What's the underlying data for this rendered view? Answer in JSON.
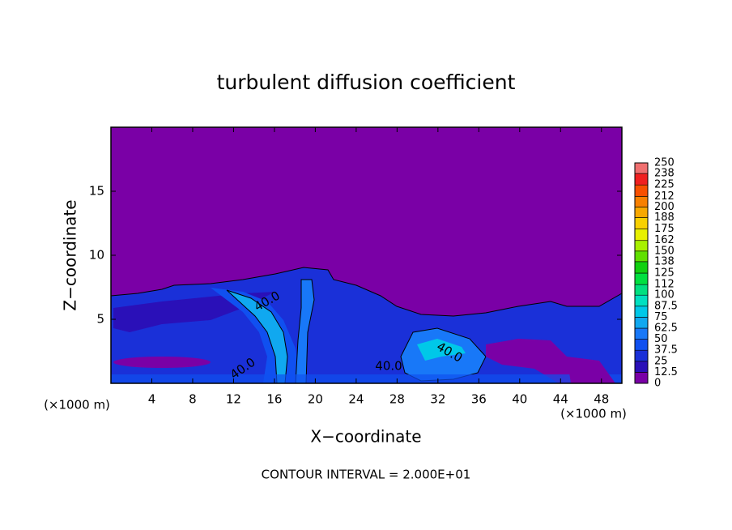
{
  "chart_data": {
    "type": "contour",
    "title": "turbulent diffusion coefficient",
    "xlabel": "X−coordinate",
    "ylabel": "Z−coordinate",
    "x_unit_left": "(×1000 m)",
    "x_unit_right": "(×1000 m)",
    "xlim": [
      0,
      50
    ],
    "xticks": [
      4,
      8,
      12,
      16,
      20,
      24,
      28,
      32,
      36,
      40,
      44,
      48
    ],
    "ylim": [
      0,
      20
    ],
    "yticks": [
      5,
      10,
      15
    ],
    "annotation": "CONTOUR INTERVAL = 2.000E+01",
    "contour_labels": [
      "40.0",
      "40.0",
      "40.0",
      "40.0"
    ],
    "colorbar": {
      "levels": [
        0,
        12.5,
        25,
        37.5,
        50,
        62.5,
        75,
        87.5,
        100,
        112,
        125,
        138,
        150,
        162,
        175,
        188,
        200,
        212,
        225,
        238,
        250
      ],
      "colors": [
        "#7a00a6",
        "#2a10b8",
        "#1a30d8",
        "#1050f0",
        "#1878f8",
        "#10a8f0",
        "#00c8e8",
        "#00e0c0",
        "#00e080",
        "#00e040",
        "#10d010",
        "#60e000",
        "#a8f000",
        "#e8f000",
        "#f8d000",
        "#f8a800",
        "#f88000",
        "#f85000",
        "#f02020",
        "#f07070"
      ]
    }
  }
}
